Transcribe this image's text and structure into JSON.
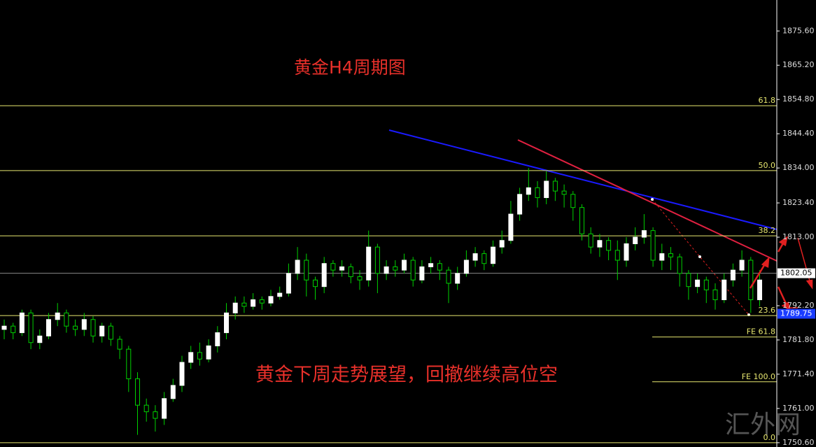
{
  "chart_data": {
    "type": "candlestick",
    "title": "黄金H4周期图",
    "annotation": "黄金下周走势展望，回撤继续高位空",
    "watermark": "汇外网",
    "up_color": "#ffffff",
    "down_color": "#000000",
    "wick_color": "#00d000",
    "open": [
      1785,
      1786,
      1784,
      1790,
      1781,
      1783,
      1788,
      1790,
      1786,
      1785,
      1788,
      1783,
      1786,
      1782,
      1779,
      1770,
      1762,
      1760,
      1758,
      1764,
      1768,
      1775,
      1778,
      1776,
      1780,
      1784,
      1790,
      1793,
      1792,
      1794,
      1793,
      1795,
      1796,
      1802,
      1806,
      1800,
      1798,
      1805,
      1803,
      1804,
      1801,
      1800,
      1810,
      1802,
      1804,
      1803,
      1806,
      1800,
      1804,
      1805,
      1803,
      1799,
      1802,
      1806,
      1808,
      1805,
      1810,
      1812,
      1820,
      1826,
      1828,
      1825,
      1830,
      1827,
      1826,
      1822,
      1814,
      1810,
      1812,
      1809,
      1806,
      1811,
      1813,
      1815,
      1806,
      1808,
      1807,
      1802,
      1798,
      1800,
      1797,
      1794,
      1800,
      1803,
      1806,
      1794
    ],
    "high": [
      1788,
      1787,
      1791,
      1791,
      1785,
      1790,
      1793,
      1791,
      1788,
      1790,
      1789,
      1787,
      1787,
      1783,
      1780,
      1772,
      1764,
      1762,
      1766,
      1770,
      1777,
      1780,
      1781,
      1782,
      1786,
      1793,
      1795,
      1795,
      1796,
      1795,
      1797,
      1798,
      1805,
      1810,
      1808,
      1801,
      1807,
      1806,
      1806,
      1805,
      1803,
      1815,
      1811,
      1806,
      1806,
      1808,
      1807,
      1806,
      1807,
      1806,
      1804,
      1804,
      1809,
      1810,
      1809,
      1812,
      1815,
      1824,
      1828,
      1834,
      1830,
      1833,
      1831,
      1829,
      1827,
      1823,
      1816,
      1814,
      1813,
      1812,
      1813,
      1816,
      1820,
      1816,
      1811,
      1810,
      1808,
      1803,
      1802,
      1801,
      1799,
      1802,
      1805,
      1809,
      1807,
      1803
    ],
    "low": [
      1782,
      1782,
      1783,
      1779,
      1779,
      1782,
      1786,
      1784,
      1783,
      1783,
      1781,
      1781,
      1780,
      1776,
      1766,
      1753,
      1757,
      1754,
      1756,
      1763,
      1766,
      1773,
      1774,
      1775,
      1778,
      1782,
      1788,
      1790,
      1791,
      1791,
      1792,
      1794,
      1795,
      1800,
      1795,
      1794,
      1796,
      1801,
      1801,
      1799,
      1797,
      1798,
      1796,
      1800,
      1801,
      1802,
      1798,
      1799,
      1802,
      1800,
      1793,
      1797,
      1801,
      1804,
      1803,
      1804,
      1808,
      1811,
      1818,
      1824,
      1822,
      1823,
      1824,
      1822,
      1818,
      1812,
      1808,
      1807,
      1806,
      1800,
      1804,
      1809,
      1811,
      1804,
      1803,
      1803,
      1798,
      1794,
      1796,
      1793,
      1791,
      1793,
      1798,
      1801,
      1790,
      1792
    ],
    "close": [
      1786,
      1784,
      1790,
      1781,
      1783,
      1788,
      1790,
      1786,
      1785,
      1788,
      1783,
      1786,
      1782,
      1779,
      1770,
      1762,
      1760,
      1758,
      1764,
      1768,
      1775,
      1778,
      1776,
      1780,
      1784,
      1790,
      1793,
      1792,
      1794,
      1793,
      1795,
      1796,
      1802,
      1806,
      1800,
      1798,
      1805,
      1803,
      1804,
      1801,
      1800,
      1810,
      1802,
      1804,
      1803,
      1806,
      1800,
      1804,
      1805,
      1803,
      1799,
      1802,
      1806,
      1808,
      1805,
      1810,
      1812,
      1820,
      1826,
      1828,
      1825,
      1830,
      1827,
      1826,
      1822,
      1814,
      1810,
      1812,
      1809,
      1806,
      1811,
      1813,
      1815,
      1806,
      1808,
      1807,
      1802,
      1798,
      1800,
      1797,
      1794,
      1800,
      1803,
      1806,
      1794,
      1800
    ],
    "ylim": [
      1749.3,
      1885.0
    ],
    "yticks": [
      {
        "value": 1875.6,
        "label": "1875.60"
      },
      {
        "value": 1865.2,
        "label": "1865.20"
      },
      {
        "value": 1854.8,
        "label": "1854.80"
      },
      {
        "value": 1844.4,
        "label": "1844.40"
      },
      {
        "value": 1834,
        "label": "1834.00"
      },
      {
        "value": 1823.4,
        "label": "1823.40"
      },
      {
        "value": 1813,
        "label": "1813.00"
      },
      {
        "value": 1792.2,
        "label": "1792.20"
      },
      {
        "value": 1781.8,
        "label": "1781.80"
      },
      {
        "value": 1771.4,
        "label": "1771.40"
      },
      {
        "value": 1761,
        "label": "1761.00"
      },
      {
        "value": 1750.6,
        "label": "1750.60"
      }
    ],
    "retracement_levels": [
      {
        "value": 1852.9,
        "label": "61.8"
      },
      {
        "value": 1833.2,
        "label": "50.0"
      },
      {
        "value": 1813.4,
        "label": "38.2"
      },
      {
        "value": 1789.2,
        "label": "23.6"
      },
      {
        "value": 1750.6,
        "label": "0.0"
      }
    ],
    "expansion_levels": [
      {
        "value": 1782.7,
        "label": "FE 61.8"
      },
      {
        "value": 1769.1,
        "label": "FE 100.0"
      }
    ],
    "level_color": "#e8e870",
    "price_markers": [
      1802.05,
      1789.75
    ],
    "price_marker_colors": [
      "#ffffff",
      "#1a3cff"
    ]
  }
}
